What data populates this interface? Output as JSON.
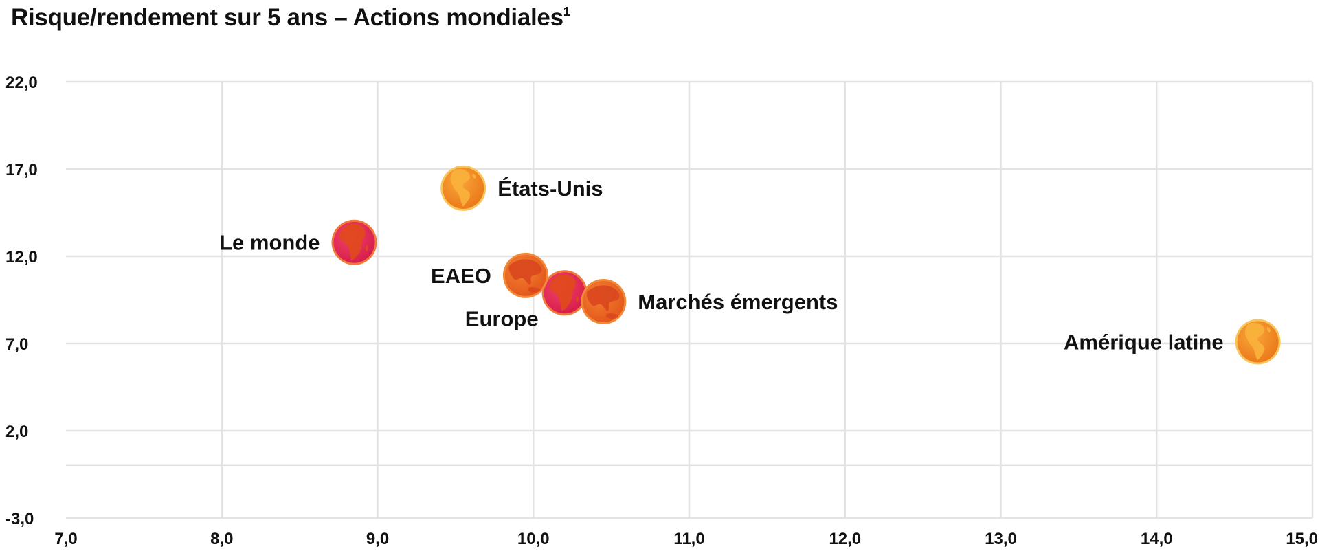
{
  "header": {
    "title": "Risque/rendement sur 5 ans – Actions mondiales",
    "footnote_mark": "1"
  },
  "colors": {
    "grid": "#e3e3e3",
    "text": "#111111",
    "orange": "#f28a1e",
    "orange_light": "#f7b53a",
    "orange_red": "#ee6a24",
    "red_pink": "#e8285a",
    "land_red": "#d41e3c",
    "land_orange": "#f9b23c",
    "land_deep": "#e04a1c"
  },
  "chart_data": {
    "type": "scatter",
    "title": "Risque/rendement sur 5 ans – Actions mondiales",
    "xlabel": "",
    "ylabel": "",
    "xlim": [
      7.0,
      15.0
    ],
    "ylim": [
      -3.0,
      22.0
    ],
    "x_ticks": [
      7.0,
      8.0,
      9.0,
      10.0,
      11.0,
      12.0,
      13.0,
      14.0,
      15.0
    ],
    "x_tick_labels": [
      "7,0",
      "8,0",
      "9,0",
      "10,0",
      "11,0",
      "12,0",
      "13,0",
      "14,0",
      "15,0"
    ],
    "y_ticks": [
      -3.0,
      2.0,
      7.0,
      12.0,
      17.0,
      22.0
    ],
    "y_tick_labels": [
      "-3,0",
      "2,0",
      "7,0",
      "12,0",
      "17,0",
      "22,0"
    ],
    "y_extra_gridlines": [
      0.0
    ],
    "grid": true,
    "legend": "none",
    "points": [
      {
        "label": "États-Unis",
        "x": 9.55,
        "y": 15.9,
        "color": "orange",
        "globe": "americas",
        "label_side": "right"
      },
      {
        "label": "Le monde",
        "x": 8.85,
        "y": 12.8,
        "color": "red",
        "globe": "africa",
        "label_side": "left"
      },
      {
        "label": "Europe",
        "x": 10.2,
        "y": 9.9,
        "color": "red",
        "globe": "africa",
        "label_side": "below-left"
      },
      {
        "label": "EAEO",
        "x": 9.95,
        "y": 10.9,
        "color": "orange-red",
        "globe": "asia",
        "label_side": "left"
      },
      {
        "label": "Marchés émergents",
        "x": 10.45,
        "y": 9.4,
        "color": "orange-red",
        "globe": "asia",
        "label_side": "right"
      },
      {
        "label": "Amérique latine",
        "x": 14.65,
        "y": 7.1,
        "color": "orange",
        "globe": "americas",
        "label_side": "left"
      }
    ]
  }
}
